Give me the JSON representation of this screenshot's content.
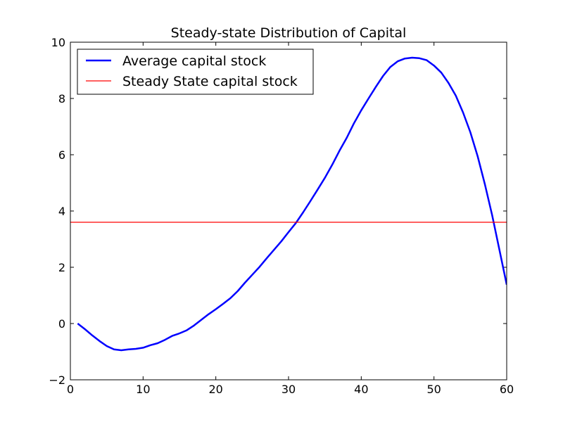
{
  "chart_data": {
    "type": "line",
    "title": "Steady-state Distribution of Capital",
    "xlabel": "",
    "ylabel": "",
    "xlim": [
      0,
      60
    ],
    "ylim": [
      -2,
      10
    ],
    "xticks": [
      0,
      10,
      20,
      30,
      40,
      50,
      60
    ],
    "yticks": [
      -2,
      0,
      2,
      4,
      6,
      8,
      10
    ],
    "grid": false,
    "legend_position": "top-left",
    "series": [
      {
        "name": "Average capital stock",
        "color": "#0000ff",
        "x": [
          1,
          2,
          3,
          4,
          5,
          6,
          7,
          8,
          9,
          10,
          11,
          12,
          13,
          14,
          15,
          16,
          17,
          18,
          19,
          20,
          21,
          22,
          23,
          24,
          25,
          26,
          27,
          28,
          29,
          30,
          31,
          32,
          33,
          34,
          35,
          36,
          37,
          38,
          39,
          40,
          41,
          42,
          43,
          44,
          45,
          46,
          47,
          48,
          49,
          50,
          51,
          52,
          53,
          54,
          55,
          56,
          57,
          58,
          59,
          60
        ],
        "y": [
          0.0,
          -0.2,
          -0.42,
          -0.62,
          -0.8,
          -0.92,
          -0.95,
          -0.92,
          -0.9,
          -0.86,
          -0.77,
          -0.7,
          -0.58,
          -0.44,
          -0.35,
          -0.24,
          -0.07,
          0.13,
          0.33,
          0.51,
          0.7,
          0.9,
          1.15,
          1.45,
          1.73,
          2.01,
          2.32,
          2.62,
          2.92,
          3.25,
          3.57,
          3.95,
          4.35,
          4.76,
          5.18,
          5.64,
          6.14,
          6.6,
          7.12,
          7.58,
          8.0,
          8.41,
          8.8,
          9.12,
          9.32,
          9.42,
          9.45,
          9.43,
          9.36,
          9.17,
          8.92,
          8.55,
          8.1,
          7.5,
          6.8,
          5.95,
          4.95,
          3.85,
          2.62,
          1.38
        ]
      },
      {
        "name": "Steady State capital stock",
        "color": "#ff0000",
        "type": "hline",
        "y": 3.6
      }
    ]
  }
}
